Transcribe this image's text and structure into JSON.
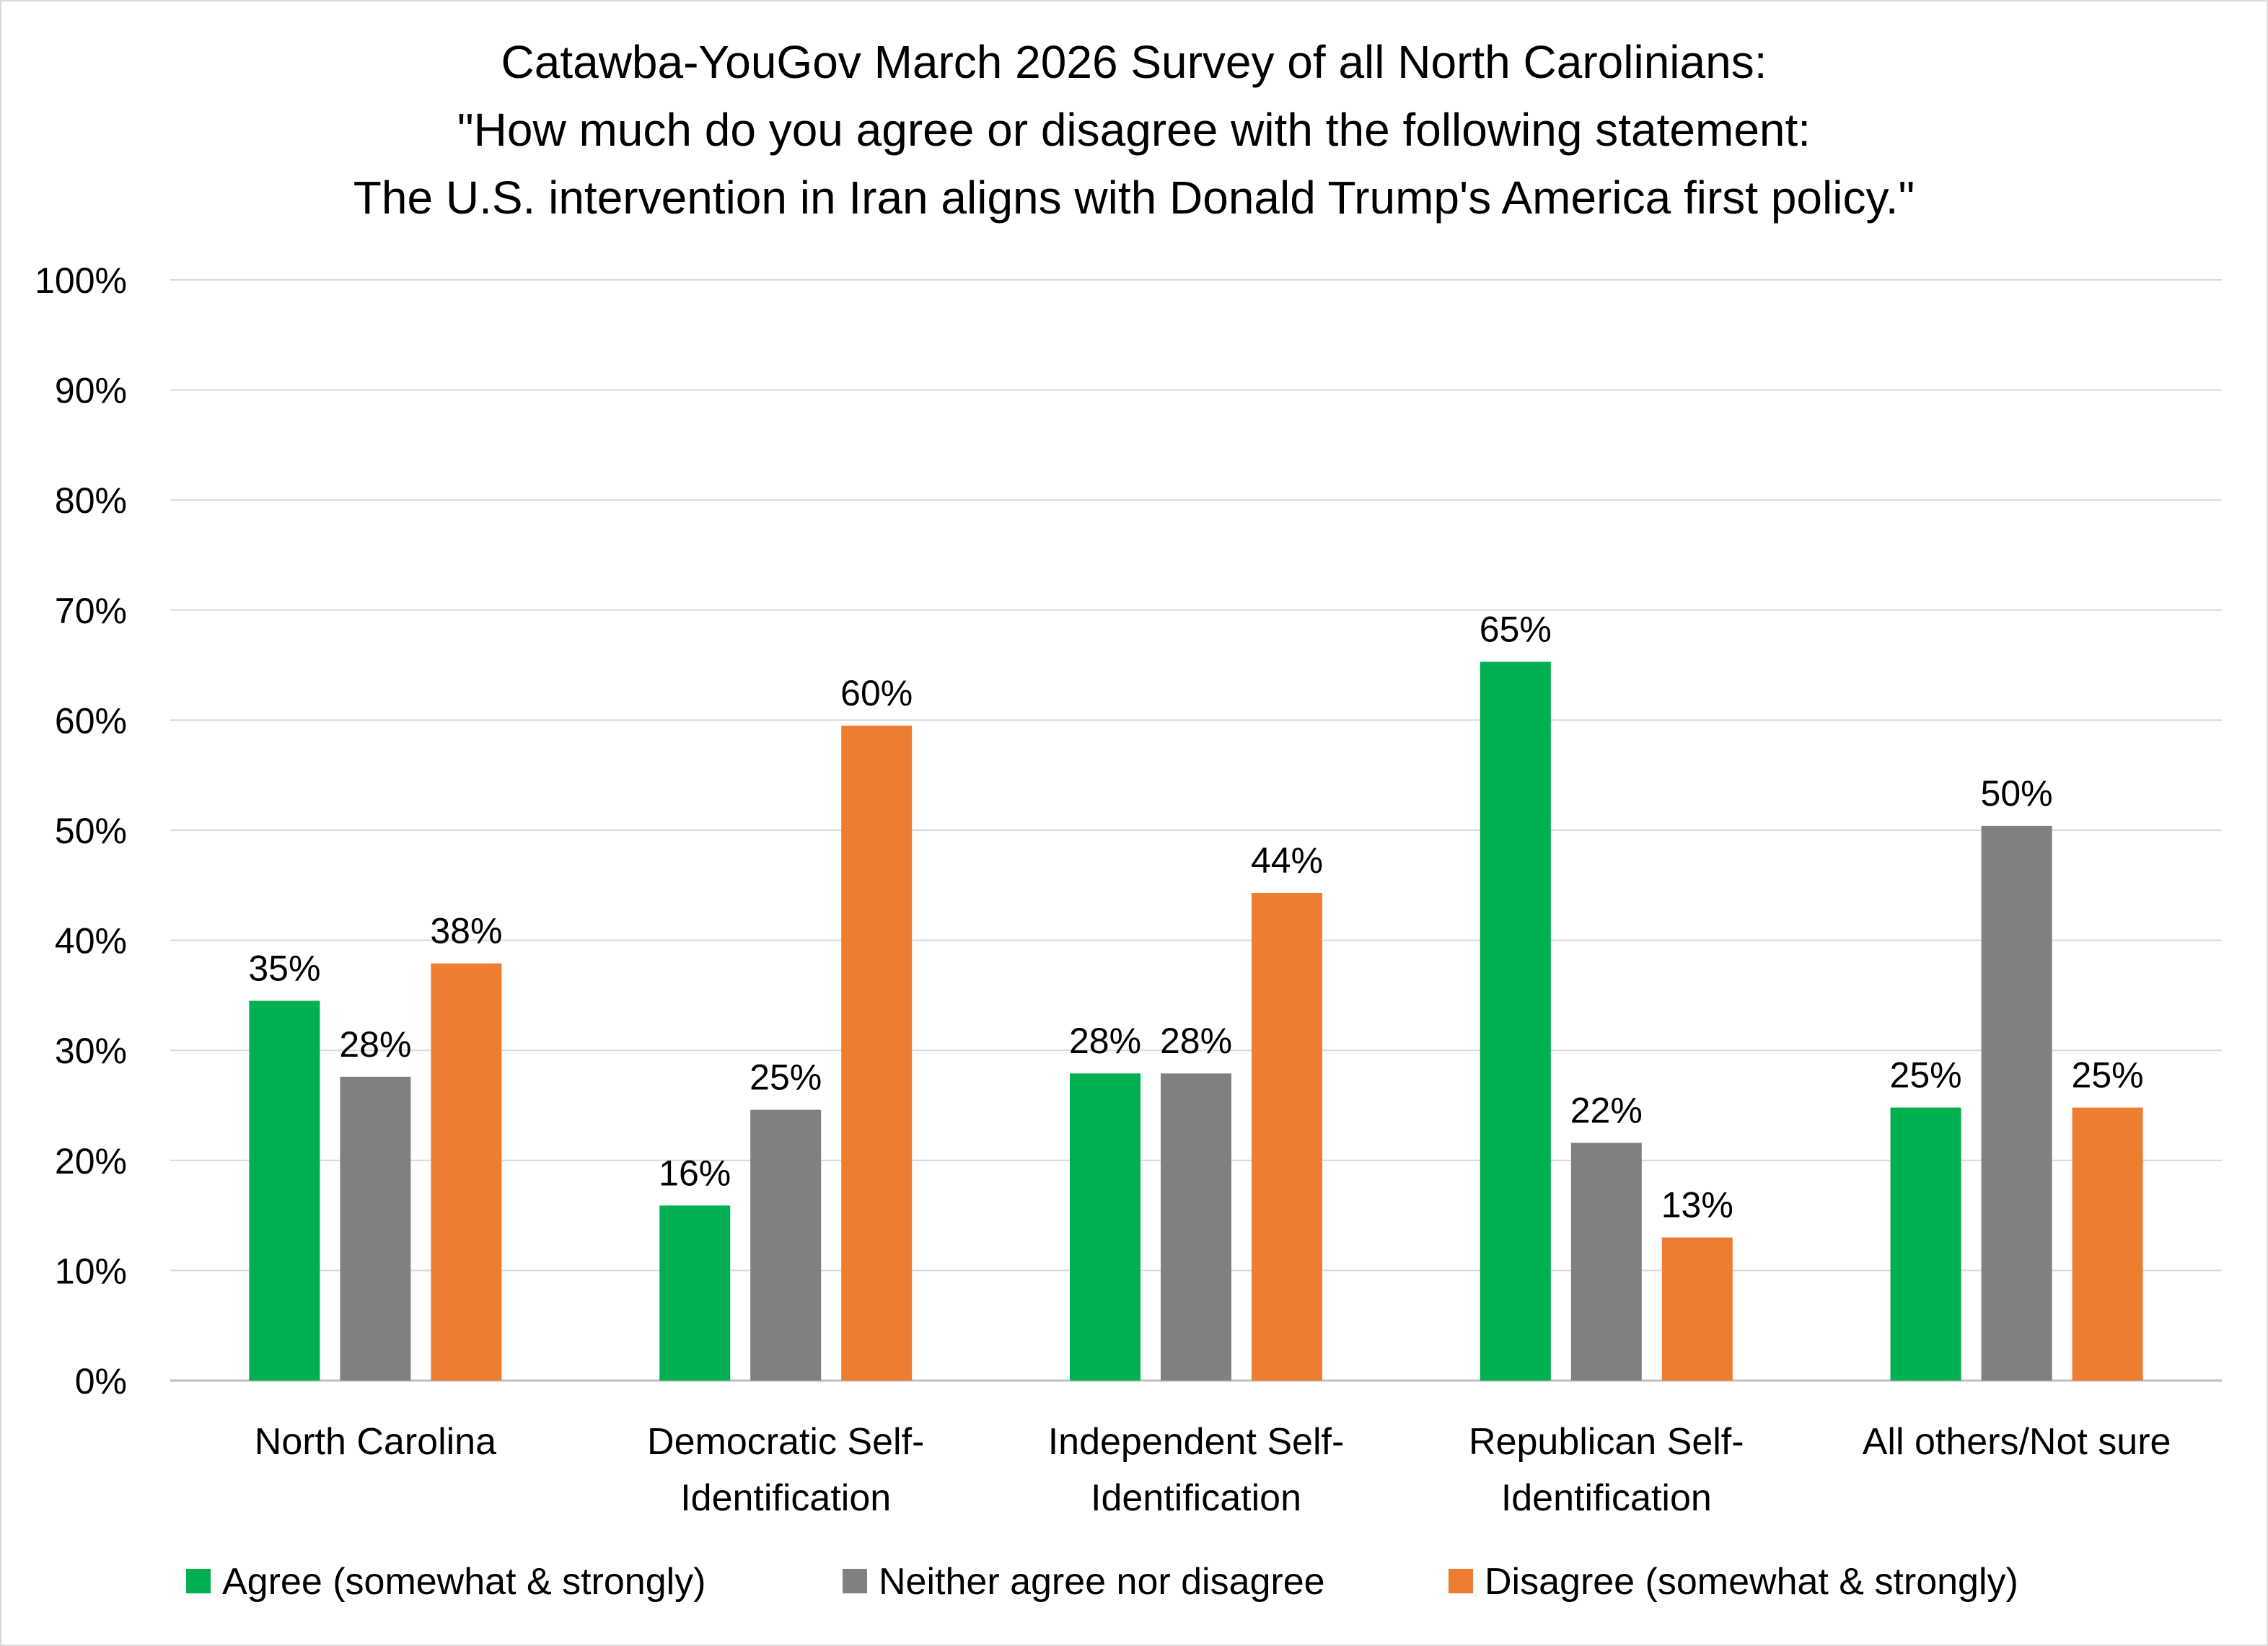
{
  "chart_data": {
    "type": "bar",
    "title": [
      "Catawba-YouGov March 2026 Survey of all North Carolinians:",
      "\"How much do you agree or disagree with the following statement:",
      "The U.S. intervention in Iran aligns with Donald Trump's America first policy.\""
    ],
    "categories": [
      [
        "North Carolina"
      ],
      [
        "Democratic Self-",
        "Identification"
      ],
      [
        "Independent Self-",
        "Identification"
      ],
      [
        "Republican Self-",
        "Identification"
      ],
      [
        "All others/Not sure"
      ]
    ],
    "series": [
      {
        "name": "Agree (somewhat & strongly)",
        "color": "#00b050",
        "values": [
          34.5,
          15.9,
          27.9,
          65.3,
          24.8
        ],
        "labels": [
          "35%",
          "16%",
          "28%",
          "65%",
          "25%"
        ]
      },
      {
        "name": "Neither agree nor disagree",
        "color": "#808080",
        "values": [
          27.6,
          24.6,
          27.9,
          21.6,
          50.4
        ],
        "labels": [
          "28%",
          "25%",
          "28%",
          "22%",
          "50%"
        ]
      },
      {
        "name": "Disagree (somewhat & strongly)",
        "color": "#ed7d31",
        "values": [
          37.9,
          59.5,
          44.3,
          13.0,
          24.8
        ],
        "labels": [
          "38%",
          "60%",
          "44%",
          "13%",
          "25%"
        ]
      }
    ],
    "ylim": [
      0,
      100
    ],
    "yticks": [
      0,
      10,
      20,
      30,
      40,
      50,
      60,
      70,
      80,
      90,
      100
    ],
    "ytick_labels": [
      "0%",
      "10%",
      "20%",
      "30%",
      "40%",
      "50%",
      "60%",
      "70%",
      "80%",
      "90%",
      "100%"
    ],
    "xlabel": "",
    "ylabel": "",
    "grid": true,
    "legend_position": "bottom"
  }
}
